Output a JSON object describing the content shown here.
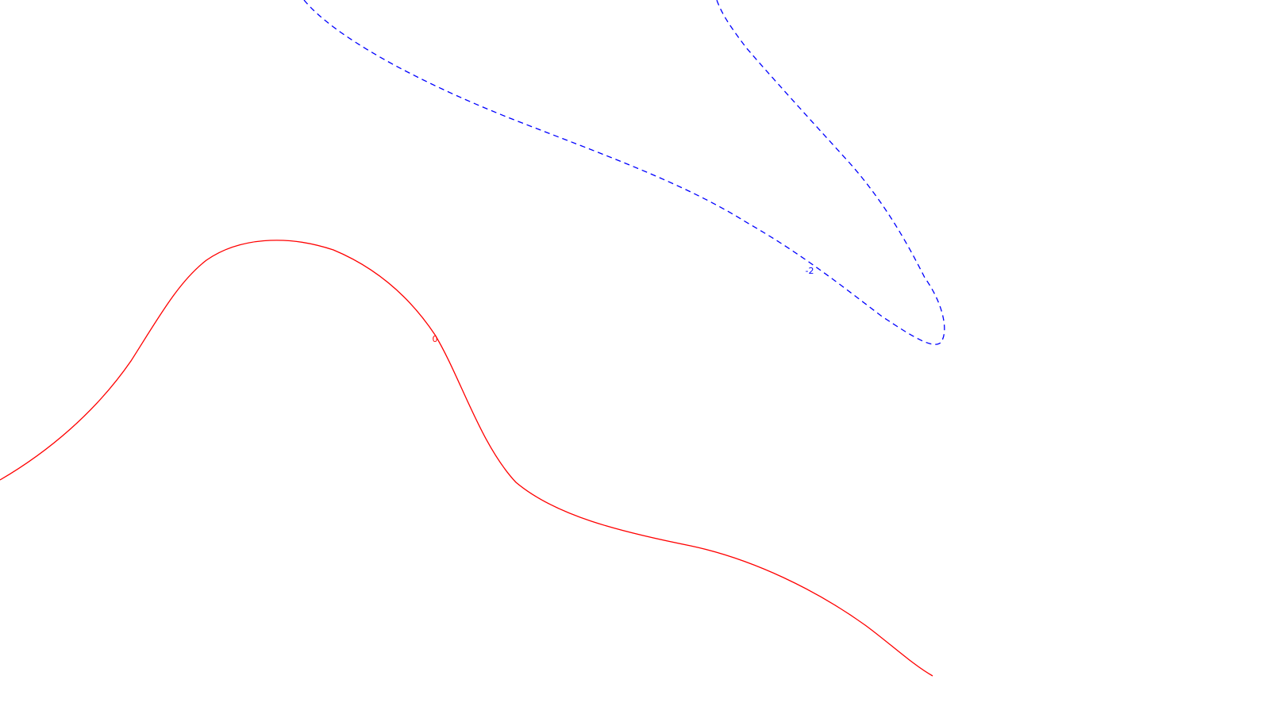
{
  "contours": [
    {
      "level_label": "0",
      "color": "#ff0000",
      "line_style": "solid"
    },
    {
      "level_label": "-2",
      "color": "#0000ff",
      "line_style": "dashed"
    }
  ]
}
